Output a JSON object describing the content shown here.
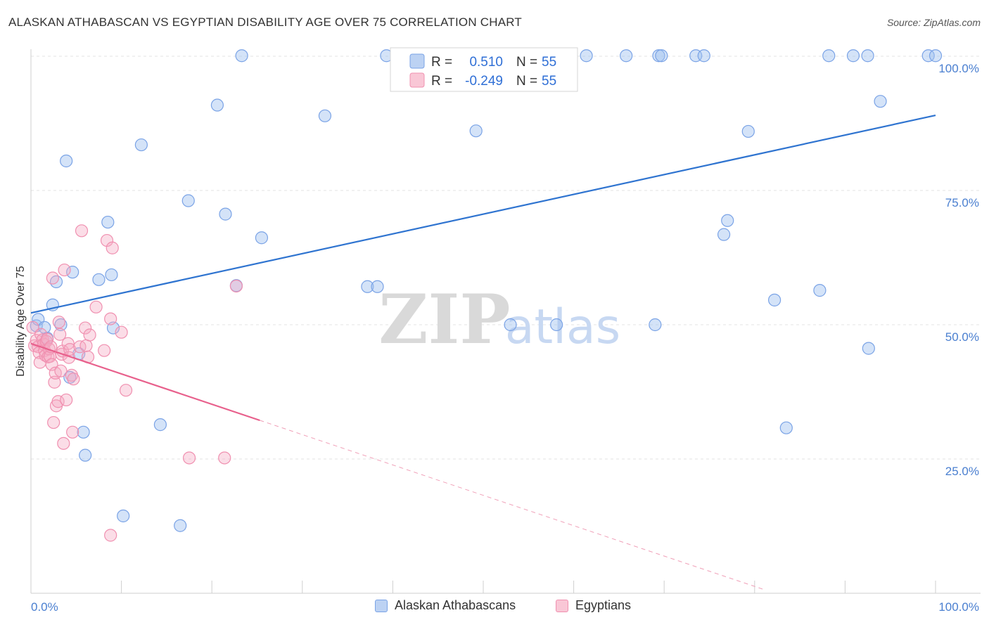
{
  "header": {
    "title": "ALASKAN ATHABASCAN VS EGYPTIAN DISABILITY AGE OVER 75 CORRELATION CHART",
    "source": "Source: ZipAtlas.com"
  },
  "watermark": {
    "zip": "ZIP",
    "atlas": "atlas"
  },
  "legend": {
    "r_label": "R =",
    "n_label": "N =",
    "rows": [
      {
        "r": "0.510",
        "n": "55",
        "color": "#5b8ee6"
      },
      {
        "r": "-0.249",
        "n": "55",
        "color": "#f07aa0"
      }
    ]
  },
  "bottom_legend": [
    "Alaskan Athabascans",
    "Egyptians"
  ],
  "chart_data": {
    "type": "scatter",
    "ylabel": "Disability Age Over 75",
    "xlim": [
      0,
      100
    ],
    "ylim": [
      0,
      100
    ],
    "x_tick_labels": [
      "0.0%",
      "100.0%"
    ],
    "y_tick_labels": [
      "25.0%",
      "50.0%",
      "75.0%",
      "100.0%"
    ],
    "y_ticks": [
      25,
      50,
      75,
      100
    ],
    "grid": "horizontal dashed",
    "series": [
      {
        "name": "Alaskan Athabascans",
        "color": "#8fb3ec",
        "trend": {
          "x0": 0,
          "y0": 52.2,
          "x1": 100,
          "y1": 89.0
        },
        "points": [
          [
            0.6,
            49.8
          ],
          [
            0.8,
            51
          ],
          [
            1.5,
            49.5
          ],
          [
            1.8,
            47.5
          ],
          [
            2.4,
            53.7
          ],
          [
            2.8,
            58
          ],
          [
            3.3,
            50
          ],
          [
            3.9,
            80.5
          ],
          [
            4.3,
            40.2
          ],
          [
            4.6,
            59.8
          ],
          [
            5.3,
            44.6
          ],
          [
            5.8,
            30
          ],
          [
            6,
            25.7
          ],
          [
            7.5,
            58.4
          ],
          [
            8.5,
            69.1
          ],
          [
            8.9,
            59.3
          ],
          [
            9.1,
            49.4
          ],
          [
            10.2,
            14.4
          ],
          [
            12.2,
            83.5
          ],
          [
            14.3,
            31.4
          ],
          [
            16.5,
            12.6
          ],
          [
            17.4,
            73.1
          ],
          [
            20.6,
            90.9
          ],
          [
            21.5,
            70.6
          ],
          [
            22.7,
            57.3
          ],
          [
            23.3,
            100.1
          ],
          [
            25.5,
            66.2
          ],
          [
            32.5,
            88.9
          ],
          [
            37.2,
            57.1
          ],
          [
            38.3,
            57.1
          ],
          [
            39.3,
            100.1
          ],
          [
            49.2,
            86.1
          ],
          [
            49.9,
            100.1
          ],
          [
            53,
            50
          ],
          [
            58.1,
            50
          ],
          [
            61.4,
            100.1
          ],
          [
            65.8,
            100.1
          ],
          [
            69,
            50
          ],
          [
            69.4,
            100.1
          ],
          [
            69.7,
            100.1
          ],
          [
            73.5,
            100.1
          ],
          [
            74.4,
            100.1
          ],
          [
            76.6,
            66.8
          ],
          [
            77,
            69.4
          ],
          [
            79.3,
            86
          ],
          [
            82.2,
            54.6
          ],
          [
            83.5,
            30.8
          ],
          [
            87.2,
            56.4
          ],
          [
            88.2,
            100.1
          ],
          [
            90.9,
            100.1
          ],
          [
            92.5,
            100.1
          ],
          [
            92.6,
            45.6
          ],
          [
            93.9,
            91.6
          ],
          [
            99.2,
            100.1
          ],
          [
            100.0,
            100.1
          ]
        ]
      },
      {
        "name": "Egyptians",
        "color": "#f4a6bf",
        "trend": {
          "x0": 0,
          "y0": 46.5,
          "x1": 25.3,
          "y1": 32.2,
          "dash_x1": 81.2,
          "dash_y1": 0.6
        },
        "points": [
          [
            0.2,
            49.5
          ],
          [
            0.4,
            46.1
          ],
          [
            0.6,
            47.1
          ],
          [
            0.8,
            45.9
          ],
          [
            0.9,
            44.8
          ],
          [
            1.0,
            43
          ],
          [
            1.1,
            48.2
          ],
          [
            1.3,
            47.2
          ],
          [
            1.4,
            46.4
          ],
          [
            1.5,
            45.2
          ],
          [
            1.6,
            44.3
          ],
          [
            1.7,
            46.9
          ],
          [
            1.8,
            47.3
          ],
          [
            1.9,
            44
          ],
          [
            2.0,
            45.5
          ],
          [
            2.1,
            44.1
          ],
          [
            2.2,
            45.9
          ],
          [
            2.3,
            42.6
          ],
          [
            2.4,
            58.7
          ],
          [
            2.5,
            31.8
          ],
          [
            2.6,
            39.3
          ],
          [
            2.7,
            41
          ],
          [
            2.8,
            34.9
          ],
          [
            3.0,
            35.7
          ],
          [
            3.1,
            50.5
          ],
          [
            3.2,
            48.2
          ],
          [
            3.3,
            41.4
          ],
          [
            3.4,
            44.5
          ],
          [
            3.5,
            45.1
          ],
          [
            3.6,
            27.9
          ],
          [
            3.7,
            60.2
          ],
          [
            3.9,
            36
          ],
          [
            4.1,
            46.5
          ],
          [
            4.2,
            43.9
          ],
          [
            4.3,
            45.4
          ],
          [
            4.5,
            40.6
          ],
          [
            4.6,
            30
          ],
          [
            4.7,
            39.9
          ],
          [
            5.4,
            45.9
          ],
          [
            5.6,
            67.5
          ],
          [
            6.0,
            49.4
          ],
          [
            6.1,
            46.1
          ],
          [
            6.3,
            44
          ],
          [
            6.5,
            48.1
          ],
          [
            7.2,
            53.3
          ],
          [
            8.1,
            45.2
          ],
          [
            8.4,
            65.7
          ],
          [
            8.8,
            51.1
          ],
          [
            8.8,
            10.8
          ],
          [
            9.0,
            64.3
          ],
          [
            10.0,
            48.6
          ],
          [
            10.5,
            37.8
          ],
          [
            17.5,
            25.2
          ],
          [
            21.4,
            25.2
          ],
          [
            22.7,
            57.2
          ]
        ]
      }
    ]
  }
}
